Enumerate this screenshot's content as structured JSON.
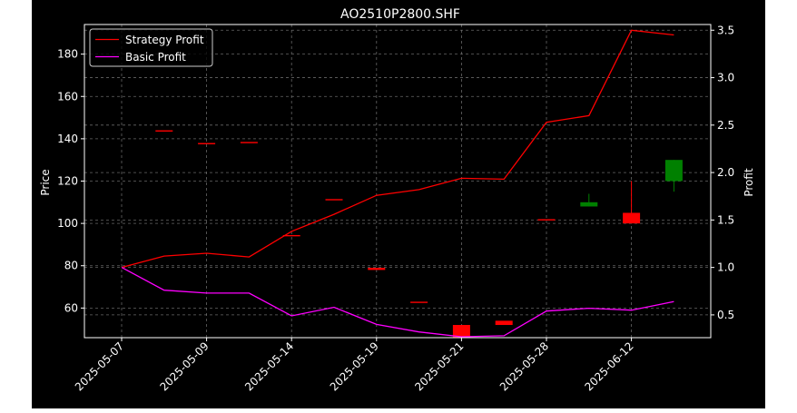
{
  "chart_data": {
    "type": "candlestick+line",
    "title": "AO2510P2800.SHF",
    "ylabel": "Price",
    "y2label": "Profit",
    "ylim": [
      46,
      194
    ],
    "y2lim": [
      0.26,
      3.56
    ],
    "yticks": [
      60,
      80,
      100,
      120,
      140,
      160,
      180
    ],
    "y2ticks": [
      0.5,
      1.0,
      1.5,
      2.0,
      2.5,
      3.0,
      3.5
    ],
    "xtick_labels": [
      "2025-05-07",
      "2025-05-09",
      "2025-05-14",
      "2025-05-19",
      "2025-05-21",
      "2025-05-28",
      "2025-06-12"
    ],
    "grid": true,
    "legend": {
      "placement": "top-left",
      "entries": [
        "Strategy Profit",
        "Basic Profit"
      ]
    },
    "colors": {
      "up": "#008000",
      "down": "#ff0000",
      "strategy": "#ff0000",
      "basic": "#ff00ff",
      "grid": "#808080",
      "background": "#000000"
    },
    "candles": [
      {
        "open": 144,
        "close": 144,
        "high": 144,
        "low": 144,
        "color": "down"
      },
      {
        "open": 138,
        "close": 138,
        "high": 138,
        "low": 138,
        "color": "down"
      },
      {
        "open": 138.5,
        "close": 138.5,
        "high": 138.5,
        "low": 138.5,
        "color": "down"
      },
      {
        "open": 94.5,
        "close": 94.5,
        "high": 94.5,
        "low": 94.5,
        "color": "down"
      },
      {
        "open": 111.5,
        "close": 111.5,
        "high": 111.5,
        "low": 111.5,
        "color": "down"
      },
      {
        "open": 79,
        "close": 78,
        "high": 79,
        "low": 78,
        "color": "down"
      },
      {
        "open": 63,
        "close": 63,
        "high": 63,
        "low": 63,
        "color": "down"
      },
      {
        "open": 52,
        "close": 46,
        "high": 52,
        "low": 46,
        "color": "down"
      },
      {
        "open": 54,
        "close": 52,
        "high": 54,
        "low": 52,
        "color": "down"
      },
      {
        "open": 102,
        "close": 101.5,
        "high": 102,
        "low": 101.5,
        "color": "down"
      },
      {
        "open": 108,
        "close": 110,
        "high": 114,
        "low": 108,
        "color": "up"
      },
      {
        "open": 105,
        "close": 100,
        "high": 120,
        "low": 100,
        "color": "down"
      },
      {
        "open": 120,
        "close": 130,
        "high": 130,
        "low": 115,
        "color": "up"
      }
    ],
    "series": [
      {
        "name": "Strategy Profit",
        "axis": "right",
        "values": [
          1.0,
          1.12,
          1.15,
          1.11,
          1.38,
          1.56,
          1.76,
          1.82,
          1.94,
          1.93,
          2.53,
          2.6,
          3.5,
          3.45
        ]
      },
      {
        "name": "Basic Profit",
        "axis": "right",
        "values": [
          1.0,
          0.76,
          0.73,
          0.73,
          0.49,
          0.58,
          0.4,
          0.32,
          0.27,
          0.28,
          0.54,
          0.57,
          0.55,
          0.64
        ]
      }
    ]
  }
}
